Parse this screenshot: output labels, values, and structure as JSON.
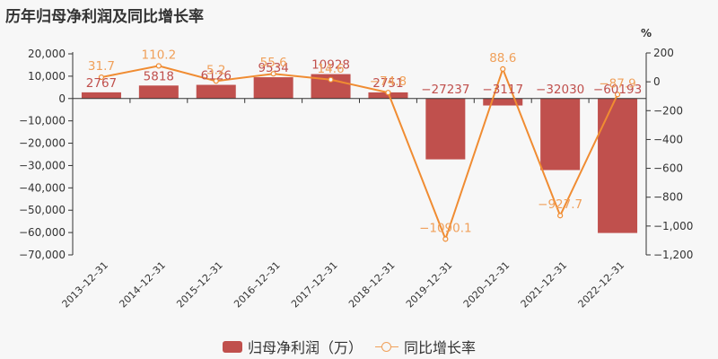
{
  "title": "历年归母净利润及同比增长率",
  "legend": {
    "bar_label": "归母净利润（万）",
    "line_label": "同比增长率"
  },
  "colors": {
    "bar": "#c0504d",
    "line": "#f0a05a",
    "line_stroke": "#f08c32"
  },
  "right_axis_unit": "%",
  "chart_data": {
    "type": "bar+line",
    "title": "历年归母净利润及同比增长率",
    "categories": [
      "2013-12-31",
      "2014-12-31",
      "2015-12-31",
      "2016-12-31",
      "2017-12-31",
      "2018-12-31",
      "2019-12-31",
      "2020-12-31",
      "2021-12-31",
      "2022-12-31"
    ],
    "series": [
      {
        "name": "归母净利润（万）",
        "type": "bar",
        "axis": "left",
        "values": [
          2767,
          5818,
          6126,
          9534,
          10928,
          2751,
          -27237,
          -3117,
          -32030,
          -60193
        ]
      },
      {
        "name": "同比增长率",
        "type": "line",
        "axis": "right",
        "values": [
          31.7,
          110.2,
          5.2,
          55.6,
          14.6,
          -74.8,
          -1090.1,
          88.6,
          -927.7,
          -87.9
        ]
      }
    ],
    "left_axis": {
      "ylim": [
        -70000,
        20000
      ],
      "ticks": [
        "20,000",
        "10,000",
        "0",
        "-10,000",
        "-20,000",
        "-30,000",
        "-40,000",
        "-50,000",
        "-60,000",
        "-70,000"
      ]
    },
    "right_axis": {
      "label": "%",
      "ylim": [
        -1200,
        200
      ],
      "ticks": [
        "200",
        "0",
        "-200",
        "-400",
        "-600",
        "-800",
        "-1,000",
        "-1,200"
      ]
    },
    "legend_position": "bottom",
    "grid": false
  }
}
